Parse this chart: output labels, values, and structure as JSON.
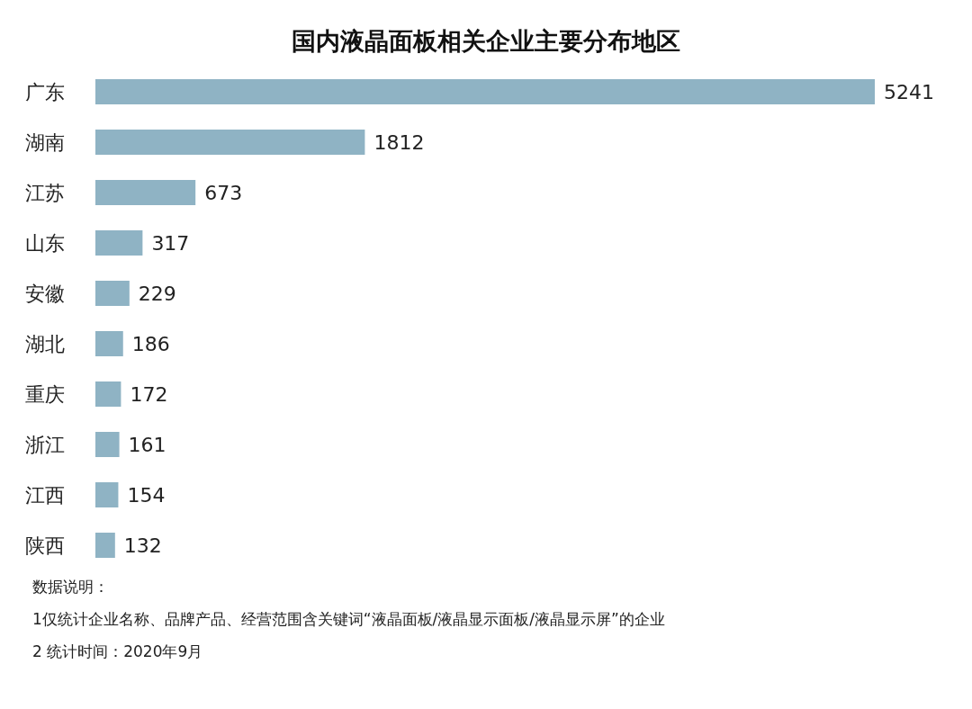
{
  "chart_data": {
    "type": "bar",
    "orientation": "horizontal",
    "title": "国内液晶面板相关企业主要分布地区",
    "categories": [
      "广东",
      "湖南",
      "江苏",
      "山东",
      "安徽",
      "湖北",
      "重庆",
      "浙江",
      "江西",
      "陕西"
    ],
    "values": [
      5241,
      1812,
      673,
      317,
      229,
      186,
      172,
      161,
      154,
      132
    ],
    "color": "#8fb3c4",
    "data_labels": true,
    "annotations": [
      "数据说明：",
      "1仅统计企业名称、品牌产品、经营范围含关键词“液晶面板/液晶显示面板/液晶显示屏”的企业",
      "2 统计时间：2020年9月"
    ]
  }
}
